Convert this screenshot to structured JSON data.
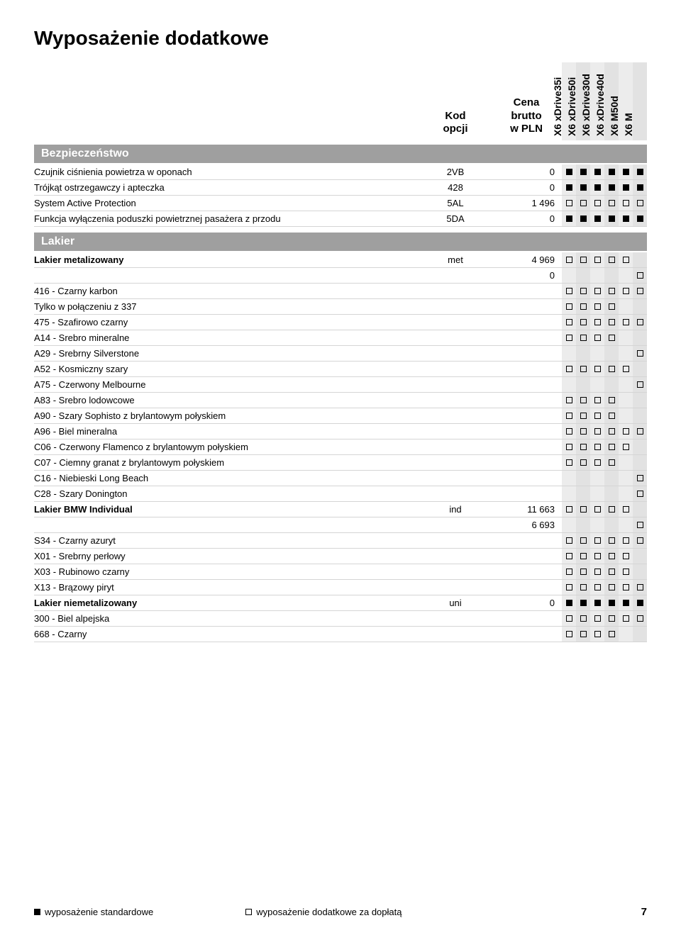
{
  "title": "Wyposażenie dodatkowe",
  "headers": {
    "code": "Kod\nopcji",
    "price": "Cena\nbrutto\nw PLN"
  },
  "models": [
    "X6 xDrive35i",
    "X6 xDrive50i",
    "X6 xDrive30d",
    "X6 xDrive40d",
    "X6 M50d",
    "X6 M"
  ],
  "colors": {
    "section_bg": "#9f9f9f",
    "stripe_a": "#ececec",
    "stripe_b": "#e2e2e2",
    "divider": "#d5d5d5"
  },
  "marks": {
    "F": "filled",
    "E": "empty",
    "": "none"
  },
  "sections": [
    {
      "name": "Bezpieczeństwo",
      "rows": [
        {
          "label": "Czujnik ciśnienia powietrza w oponach",
          "code": "2VB",
          "price": "0",
          "m": [
            "F",
            "F",
            "F",
            "F",
            "F",
            "F"
          ]
        },
        {
          "label": "Trójkąt ostrzegawczy i apteczka",
          "code": "428",
          "price": "0",
          "m": [
            "F",
            "F",
            "F",
            "F",
            "F",
            "F"
          ]
        },
        {
          "label": "System Active Protection",
          "code": "5AL",
          "price": "1 496",
          "m": [
            "E",
            "E",
            "E",
            "E",
            "E",
            "E"
          ]
        },
        {
          "label": "Funkcja wyłączenia poduszki powietrznej pasażera z przodu",
          "code": "5DA",
          "price": "0",
          "m": [
            "F",
            "F",
            "F",
            "F",
            "F",
            "F"
          ]
        }
      ]
    },
    {
      "name": "Lakier",
      "rows": [
        {
          "label": "Lakier metalizowany",
          "code": "met",
          "price": "4 969",
          "m": [
            "E",
            "E",
            "E",
            "E",
            "E",
            ""
          ],
          "bold": true
        },
        {
          "label": "",
          "code": "",
          "price": "0",
          "m": [
            "",
            "",
            "",
            "",
            "",
            "E"
          ]
        },
        {
          "label": "416 - Czarny karbon",
          "code": "",
          "price": "",
          "m": [
            "E",
            "E",
            "E",
            "E",
            "E",
            "E"
          ]
        },
        {
          "label": "Tylko w połączeniu z 337",
          "code": "",
          "price": "",
          "m": [
            "E",
            "E",
            "E",
            "E",
            "",
            ""
          ]
        },
        {
          "label": "475 - Szafirowo czarny",
          "code": "",
          "price": "",
          "m": [
            "E",
            "E",
            "E",
            "E",
            "E",
            "E"
          ]
        },
        {
          "label": "A14 - Srebro mineralne",
          "code": "",
          "price": "",
          "m": [
            "E",
            "E",
            "E",
            "E",
            "",
            ""
          ]
        },
        {
          "label": "A29 - Srebrny Silverstone",
          "code": "",
          "price": "",
          "m": [
            "",
            "",
            "",
            "",
            "",
            "E"
          ]
        },
        {
          "label": "A52 - Kosmiczny szary",
          "code": "",
          "price": "",
          "m": [
            "E",
            "E",
            "E",
            "E",
            "E",
            ""
          ]
        },
        {
          "label": "A75 - Czerwony Melbourne",
          "code": "",
          "price": "",
          "m": [
            "",
            "",
            "",
            "",
            "",
            "E"
          ]
        },
        {
          "label": "A83 - Srebro lodowcowe",
          "code": "",
          "price": "",
          "m": [
            "E",
            "E",
            "E",
            "E",
            "",
            ""
          ]
        },
        {
          "label": "A90 - Szary Sophisto z brylantowym połyskiem",
          "code": "",
          "price": "",
          "m": [
            "E",
            "E",
            "E",
            "E",
            "",
            ""
          ]
        },
        {
          "label": "A96 - Biel mineralna",
          "code": "",
          "price": "",
          "m": [
            "E",
            "E",
            "E",
            "E",
            "E",
            "E"
          ]
        },
        {
          "label": "C06 - Czerwony Flamenco z brylantowym połyskiem",
          "code": "",
          "price": "",
          "m": [
            "E",
            "E",
            "E",
            "E",
            "E",
            ""
          ]
        },
        {
          "label": "C07 - Ciemny granat z brylantowym połyskiem",
          "code": "",
          "price": "",
          "m": [
            "E",
            "E",
            "E",
            "E",
            "",
            ""
          ]
        },
        {
          "label": "C16 - Niebieski Long Beach",
          "code": "",
          "price": "",
          "m": [
            "",
            "",
            "",
            "",
            "",
            "E"
          ]
        },
        {
          "label": "C28 - Szary Donington",
          "code": "",
          "price": "",
          "m": [
            "",
            "",
            "",
            "",
            "",
            "E"
          ]
        },
        {
          "label": "Lakier BMW Individual",
          "code": "ind",
          "price": "11 663",
          "m": [
            "E",
            "E",
            "E",
            "E",
            "E",
            ""
          ],
          "bold": true
        },
        {
          "label": "",
          "code": "",
          "price": "6 693",
          "m": [
            "",
            "",
            "",
            "",
            "",
            "E"
          ]
        },
        {
          "label": "S34 - Czarny azuryt",
          "code": "",
          "price": "",
          "m": [
            "E",
            "E",
            "E",
            "E",
            "E",
            "E"
          ]
        },
        {
          "label": "X01 - Srebrny perłowy",
          "code": "",
          "price": "",
          "m": [
            "E",
            "E",
            "E",
            "E",
            "E",
            ""
          ]
        },
        {
          "label": "X03 - Rubinowo czarny",
          "code": "",
          "price": "",
          "m": [
            "E",
            "E",
            "E",
            "E",
            "E",
            ""
          ]
        },
        {
          "label": "X13 - Brązowy piryt",
          "code": "",
          "price": "",
          "m": [
            "E",
            "E",
            "E",
            "E",
            "E",
            "E"
          ]
        },
        {
          "label": "Lakier niemetalizowany",
          "code": "uni",
          "price": "0",
          "m": [
            "F",
            "F",
            "F",
            "F",
            "F",
            "F"
          ],
          "bold": true
        },
        {
          "label": "300 - Biel alpejska",
          "code": "",
          "price": "",
          "m": [
            "E",
            "E",
            "E",
            "E",
            "E",
            "E"
          ]
        },
        {
          "label": "668 - Czarny",
          "code": "",
          "price": "",
          "m": [
            "E",
            "E",
            "E",
            "E",
            "",
            ""
          ]
        }
      ]
    }
  ],
  "legend": {
    "standard": "wyposażenie standardowe",
    "optional": "wyposażenie dodatkowe za dopłatą"
  },
  "page_number": "7"
}
